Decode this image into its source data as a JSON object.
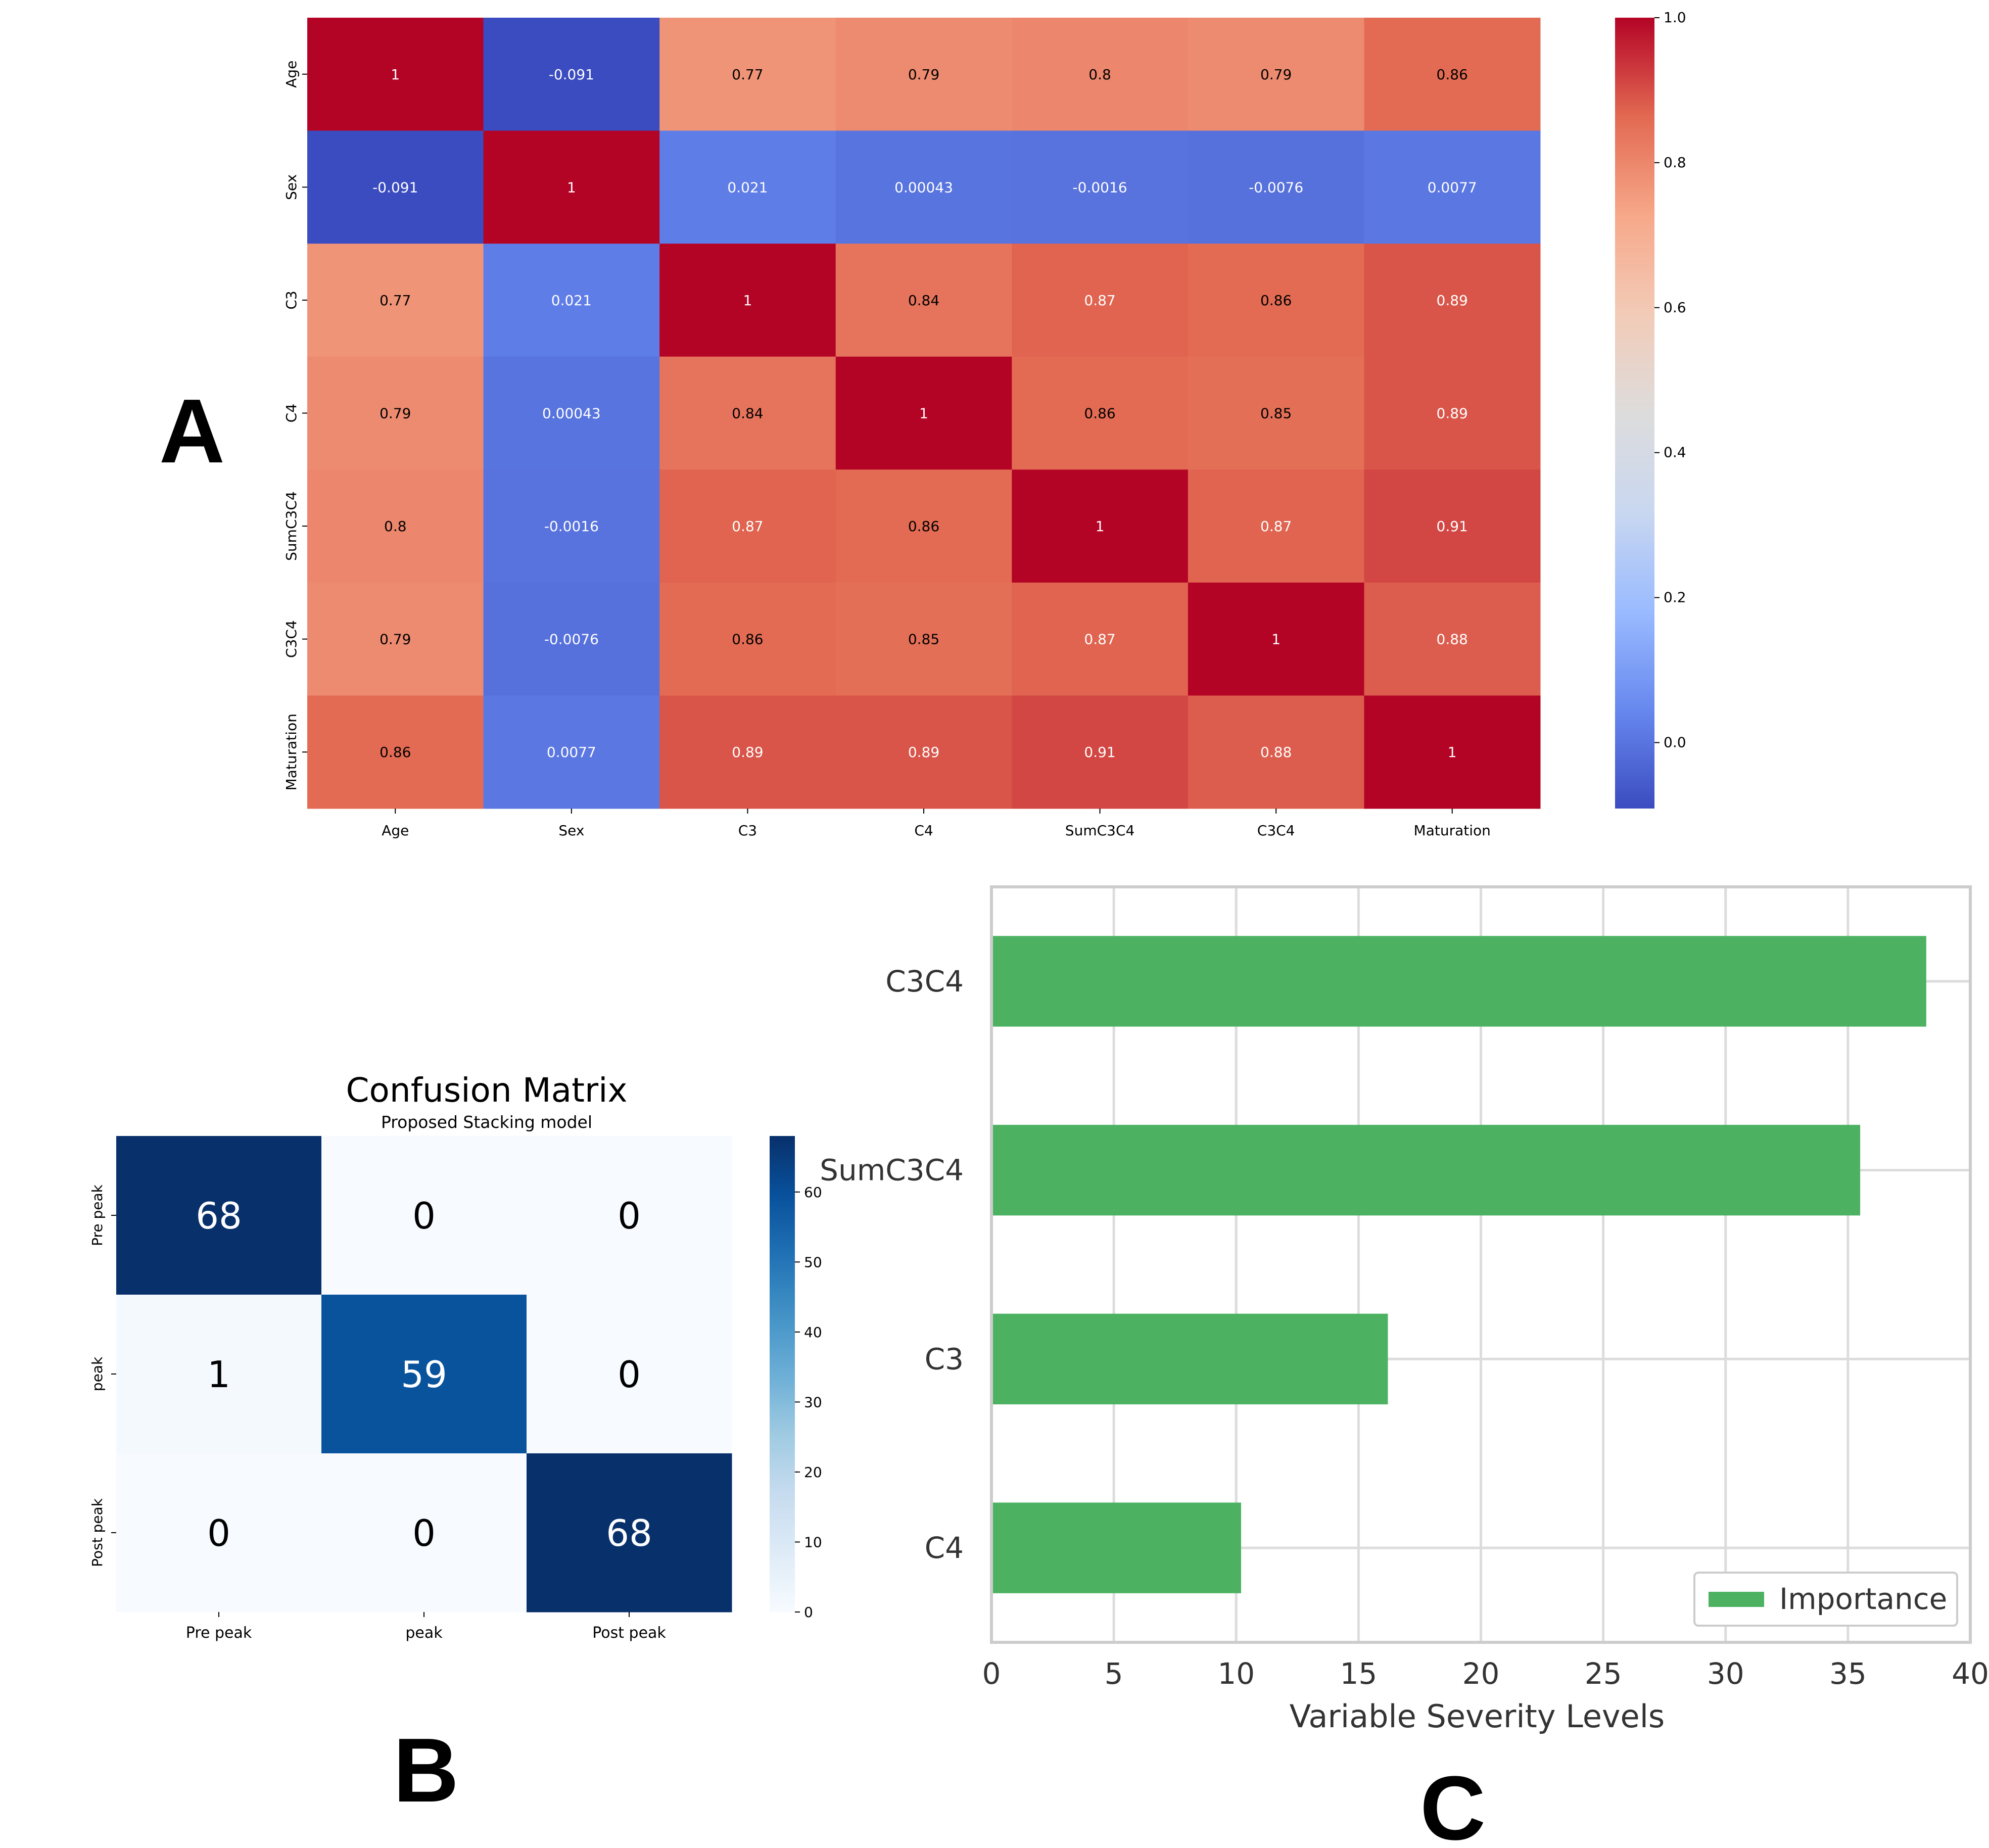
{
  "panel_labels": {
    "a": "A",
    "b": "B",
    "c": "C"
  },
  "colors": {
    "heat_low": "#3b4cc0",
    "heat_mid": "#dddcdc",
    "heat_high": "#b40426",
    "blues_low": "#f7fbff",
    "blues_high": "#08306b",
    "bar_green": "#4cb262",
    "grid": "#dcdcdc",
    "frame": "#cccccc"
  },
  "chart_data": [
    {
      "type": "heatmap",
      "panel": "A",
      "title": "",
      "row_labels": [
        "Age",
        "Sex",
        "C3",
        "C4",
        "SumC3C4",
        "C3C4",
        "Maturation"
      ],
      "col_labels": [
        "Age",
        "Sex",
        "C3",
        "C4",
        "SumC3C4",
        "C3C4",
        "Maturation"
      ],
      "values": [
        [
          1,
          -0.091,
          0.77,
          0.79,
          0.8,
          0.79,
          0.86
        ],
        [
          -0.091,
          1,
          0.021,
          0.00043,
          -0.0016,
          -0.0076,
          0.0077
        ],
        [
          0.77,
          0.021,
          1,
          0.84,
          0.87,
          0.86,
          0.89
        ],
        [
          0.79,
          0.00043,
          0.84,
          1,
          0.86,
          0.85,
          0.89
        ],
        [
          0.8,
          -0.0016,
          0.87,
          0.86,
          1,
          0.87,
          0.91
        ],
        [
          0.79,
          -0.0076,
          0.86,
          0.85,
          0.87,
          1,
          0.88
        ],
        [
          0.86,
          0.0077,
          0.89,
          0.89,
          0.91,
          0.88,
          1
        ]
      ],
      "labels": [
        [
          "1",
          "-0.091",
          "0.77",
          "0.79",
          "0.8",
          "0.79",
          "0.86"
        ],
        [
          "-0.091",
          "1",
          "0.021",
          "0.00043",
          "-0.0016",
          "-0.0076",
          "0.0077"
        ],
        [
          "0.77",
          "0.021",
          "1",
          "0.84",
          "0.87",
          "0.86",
          "0.89"
        ],
        [
          "0.79",
          "0.00043",
          "0.84",
          "1",
          "0.86",
          "0.85",
          "0.89"
        ],
        [
          "0.8",
          "-0.0016",
          "0.87",
          "0.86",
          "1",
          "0.87",
          "0.91"
        ],
        [
          "0.79",
          "-0.0076",
          "0.86",
          "0.85",
          "0.87",
          "1",
          "0.88"
        ],
        [
          "0.86",
          "0.0077",
          "0.89",
          "0.89",
          "0.91",
          "0.88",
          "1"
        ]
      ],
      "colorbar": {
        "range": [
          -0.091,
          1.0
        ],
        "ticks": [
          0.0,
          0.2,
          0.4,
          0.6,
          0.8,
          1.0
        ],
        "tick_labels": [
          "0.0",
          "0.2",
          "0.4",
          "0.6",
          "0.8",
          "1.0"
        ]
      }
    },
    {
      "type": "heatmap",
      "panel": "B",
      "title": "Confusion Matrix",
      "subtitle": "Proposed Stacking model",
      "row_labels": [
        "Pre peak",
        "peak",
        "Post peak"
      ],
      "col_labels": [
        "Pre peak",
        "peak",
        "Post peak"
      ],
      "values": [
        [
          68,
          0,
          0
        ],
        [
          1,
          59,
          0
        ],
        [
          0,
          0,
          68
        ]
      ],
      "labels": [
        [
          "68",
          "0",
          "0"
        ],
        [
          "1",
          "59",
          "0"
        ],
        [
          "0",
          "0",
          "68"
        ]
      ],
      "colorbar": {
        "range": [
          0,
          68
        ],
        "ticks": [
          0,
          10,
          20,
          30,
          40,
          50,
          60
        ],
        "tick_labels": [
          "0",
          "10",
          "20",
          "30",
          "40",
          "50",
          "60"
        ]
      }
    },
    {
      "type": "bar",
      "orientation": "horizontal",
      "panel": "C",
      "title": "",
      "categories": [
        "C3C4",
        "SumC3C4",
        "C3",
        "C4"
      ],
      "values": [
        38.2,
        35.5,
        16.2,
        10.2
      ],
      "xlabel": "Variable Severity Levels",
      "ylabel": "",
      "xlim": [
        0,
        40
      ],
      "xticks": [
        0,
        5,
        10,
        15,
        20,
        25,
        30,
        35,
        40
      ],
      "xtick_labels": [
        "0",
        "5",
        "10",
        "15",
        "20",
        "25",
        "30",
        "35",
        "40"
      ],
      "legend": [
        "Importance"
      ],
      "legend_position": "bottom-right",
      "grid": true
    }
  ]
}
